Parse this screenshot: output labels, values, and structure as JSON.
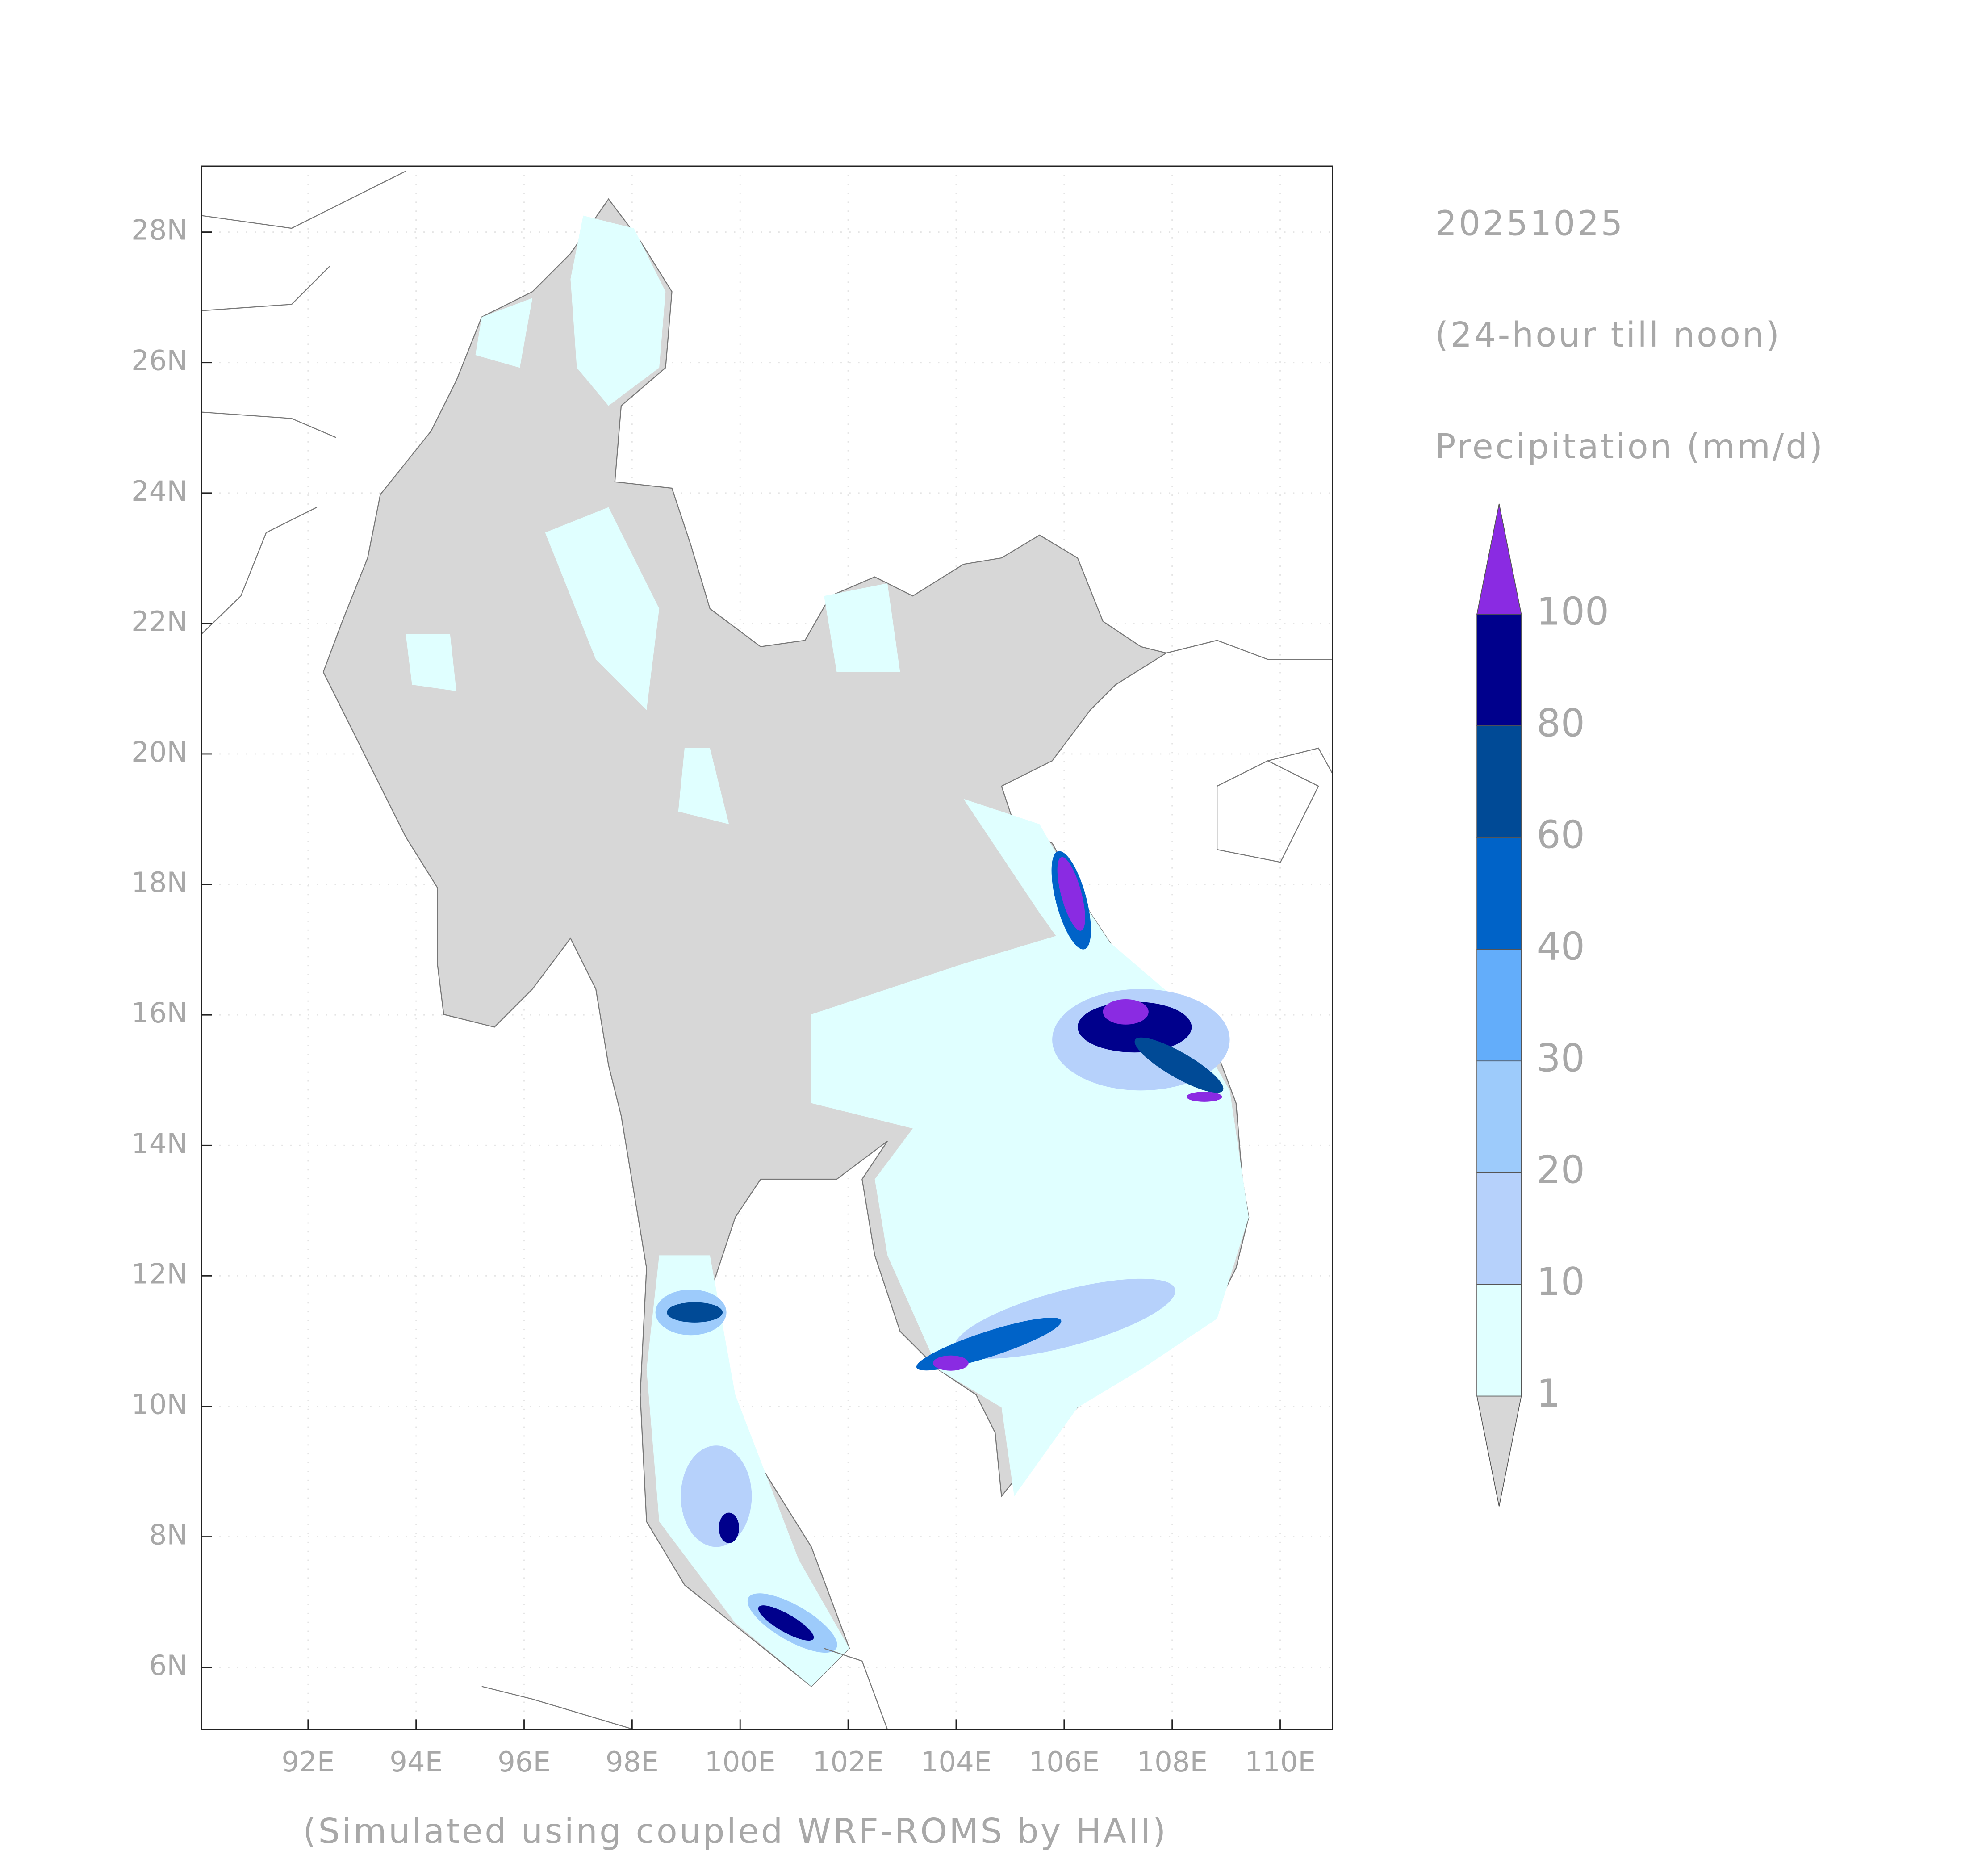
{
  "map": {
    "date": "20251025",
    "period": "(24-hour till noon)",
    "variable": "Precipitation (mm/d)",
    "credit": "(Simulated using coupled WRF-ROMS by HAII)",
    "lon_ticks": [
      "92E",
      "94E",
      "96E",
      "98E",
      "100E",
      "102E",
      "104E",
      "106E",
      "108E",
      "110E"
    ],
    "lat_ticks": [
      "28N",
      "26N",
      "24N",
      "22N",
      "20N",
      "18N",
      "16N",
      "14N",
      "12N",
      "10N",
      "8N",
      "6N"
    ],
    "colorbar": {
      "levels": [
        1,
        10,
        20,
        30,
        40,
        60,
        80,
        100
      ],
      "colors": [
        "#d7d7d7",
        "#e0ffff",
        "#b6d1fb",
        "#9dcbfb",
        "#63adfa",
        "#0063c8",
        "#004a96",
        "#00008c",
        "#8a2be2"
      ]
    }
  }
}
